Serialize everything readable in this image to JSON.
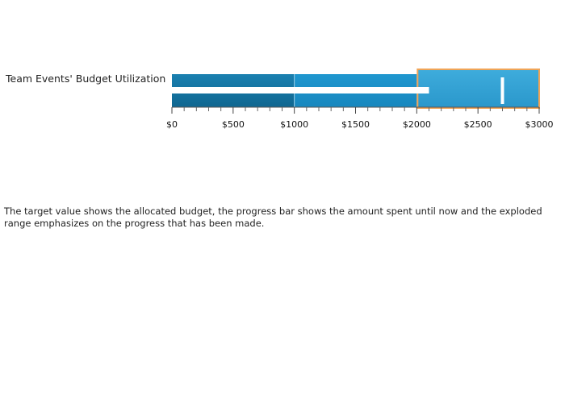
{
  "chart_data": {
    "type": "bullet",
    "title": "Team Events' Budget Utilization",
    "axis": {
      "min": 0,
      "max": 3000,
      "major_interval": 500,
      "minor_per_major": 5,
      "format_prefix": "$"
    },
    "tick_labels": [
      "$0",
      "$500",
      "$1000",
      "$1500",
      "$2000",
      "$2500",
      "$3000"
    ],
    "ranges": [
      {
        "end": 1000,
        "color": "#146f9c"
      },
      {
        "end": 2000,
        "color": "#1a8fc7"
      },
      {
        "end": 3000,
        "color": "#33a3d6",
        "exploded": true,
        "border": "#f0a457"
      }
    ],
    "value": 2100,
    "target": 2700,
    "value_bar_color": "#ffffff",
    "target_color": "#ffffff"
  },
  "description": "The target value shows the allocated budget, the progress bar shows the amount spent until now and the exploded range emphasizes on the progress that has been made."
}
